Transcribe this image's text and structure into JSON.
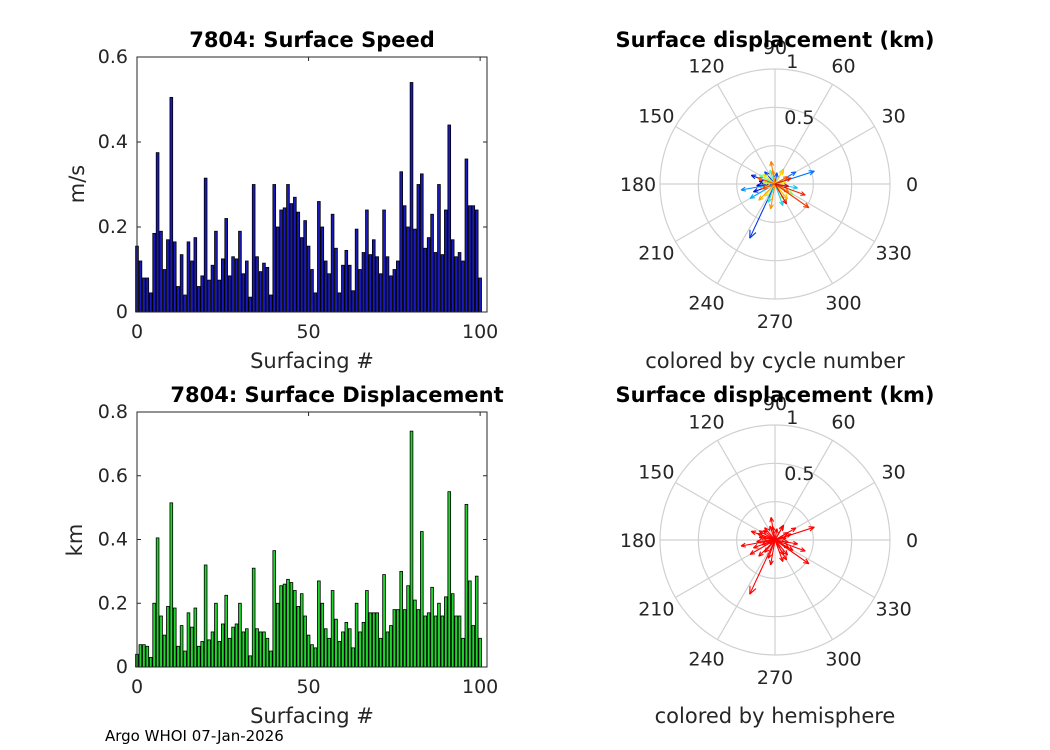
{
  "chart_data": [
    {
      "type": "bar",
      "title": "7804: Surface Speed",
      "xlabel": "Surfacing #",
      "ylabel": "m/s",
      "xlim": [
        0,
        102
      ],
      "ylim": [
        0,
        0.6
      ],
      "xticks": [
        "0",
        "50",
        "100"
      ],
      "yticks": [
        "0",
        "0.2",
        "0.4",
        "0.6"
      ],
      "color": "#1a1ab8",
      "values": [
        0.155,
        0.12,
        0.08,
        0.08,
        0.045,
        0.185,
        0.375,
        0.19,
        0.1,
        0.17,
        0.505,
        0.165,
        0.06,
        0.135,
        0.04,
        0.165,
        0.12,
        0.175,
        0.06,
        0.085,
        0.315,
        0.075,
        0.11,
        0.19,
        0.075,
        0.125,
        0.22,
        0.085,
        0.13,
        0.125,
        0.19,
        0.09,
        0.12,
        0.035,
        0.3,
        0.13,
        0.095,
        0.115,
        0.105,
        0.04,
        0.3,
        0.2,
        0.24,
        0.245,
        0.3,
        0.255,
        0.27,
        0.235,
        0.175,
        0.215,
        0.155,
        0.1,
        0.045,
        0.26,
        0.2,
        0.12,
        0.09,
        0.23,
        0.15,
        0.045,
        0.11,
        0.145,
        0.11,
        0.05,
        0.195,
        0.1,
        0.14,
        0.24,
        0.135,
        0.17,
        0.13,
        0.09,
        0.24,
        0.13,
        0.085,
        0.1,
        0.12,
        0.33,
        0.25,
        0.2,
        0.54,
        0.195,
        0.3,
        0.325,
        0.15,
        0.175,
        0.23,
        0.14,
        0.3,
        0.135,
        0.24,
        0.44,
        0.17,
        0.13,
        0.14,
        0.12,
        0.36,
        0.25,
        0.25,
        0.24,
        0.08
      ],
      "data_labels": []
    },
    {
      "type": "bar",
      "title": "7804: Surface Displacement",
      "xlabel": "Surfacing #",
      "ylabel": "km",
      "xlim": [
        0,
        102
      ],
      "ylim": [
        0,
        0.8
      ],
      "xticks": [
        "0",
        "50",
        "100"
      ],
      "yticks": [
        "0",
        "0.2",
        "0.4",
        "0.6",
        "0.8"
      ],
      "color": "#22d42e",
      "values": [
        0.04,
        0.07,
        0.07,
        0.065,
        0.03,
        0.2,
        0.405,
        0.16,
        0.1,
        0.19,
        0.515,
        0.185,
        0.065,
        0.13,
        0.05,
        0.17,
        0.125,
        0.185,
        0.065,
        0.08,
        0.32,
        0.085,
        0.11,
        0.2,
        0.08,
        0.135,
        0.225,
        0.09,
        0.125,
        0.135,
        0.2,
        0.11,
        0.12,
        0.035,
        0.31,
        0.12,
        0.11,
        0.11,
        0.09,
        0.05,
        0.365,
        0.2,
        0.255,
        0.26,
        0.275,
        0.265,
        0.24,
        0.19,
        0.23,
        0.16,
        0.1,
        0.07,
        0.06,
        0.27,
        0.2,
        0.12,
        0.09,
        0.24,
        0.15,
        0.08,
        0.11,
        0.14,
        0.12,
        0.06,
        0.2,
        0.11,
        0.14,
        0.24,
        0.17,
        0.17,
        0.17,
        0.09,
        0.29,
        0.11,
        0.13,
        0.18,
        0.18,
        0.3,
        0.18,
        0.255,
        0.74,
        0.21,
        0.18,
        0.425,
        0.16,
        0.17,
        0.25,
        0.16,
        0.2,
        0.16,
        0.22,
        0.55,
        0.23,
        0.16,
        0.16,
        0.09,
        0.51,
        0.27,
        0.13,
        0.285,
        0.09
      ],
      "data_labels": []
    },
    {
      "type": "polar-vectors",
      "title": "Surface displacement (km)",
      "caption": "colored by cycle number",
      "radial_max": 1,
      "radial_ticks": [
        "0.5",
        "1"
      ],
      "angle_ticks": [
        "0",
        "30",
        "60",
        "90",
        "120",
        "150",
        "180",
        "210",
        "240",
        "270",
        "300",
        "330"
      ],
      "colormap": [
        "#0000c8",
        "#0060ff",
        "#00c0ff",
        "#60ffa0",
        "#ffe000",
        "#ff6000",
        "#d40000"
      ],
      "vectors": [
        {
          "angle_deg": 185,
          "r": 0.16,
          "cycle": 1
        },
        {
          "angle_deg": 170,
          "r": 0.14,
          "cycle": 2
        },
        {
          "angle_deg": 200,
          "r": 0.2,
          "cycle": 3
        },
        {
          "angle_deg": 160,
          "r": 0.22,
          "cycle": 5
        },
        {
          "angle_deg": 245,
          "r": 0.52,
          "cycle": 10
        },
        {
          "angle_deg": 130,
          "r": 0.14,
          "cycle": 12
        },
        {
          "angle_deg": 80,
          "r": 0.1,
          "cycle": 15
        },
        {
          "angle_deg": 30,
          "r": 0.21,
          "cycle": 18
        },
        {
          "angle_deg": 18,
          "r": 0.36,
          "cycle": 20
        },
        {
          "angle_deg": 190,
          "r": 0.3,
          "cycle": 25
        },
        {
          "angle_deg": 210,
          "r": 0.25,
          "cycle": 30
        },
        {
          "angle_deg": 350,
          "r": 0.2,
          "cycle": 35
        },
        {
          "angle_deg": 290,
          "r": 0.2,
          "cycle": 38
        },
        {
          "angle_deg": 250,
          "r": 0.17,
          "cycle": 42
        },
        {
          "angle_deg": 60,
          "r": 0.15,
          "cycle": 45
        },
        {
          "angle_deg": 110,
          "r": 0.13,
          "cycle": 48
        },
        {
          "angle_deg": 150,
          "r": 0.16,
          "cycle": 50
        },
        {
          "angle_deg": 330,
          "r": 0.18,
          "cycle": 55
        },
        {
          "angle_deg": 300,
          "r": 0.15,
          "cycle": 58
        },
        {
          "angle_deg": 170,
          "r": 0.11,
          "cycle": 60
        },
        {
          "angle_deg": 230,
          "r": 0.14,
          "cycle": 62
        },
        {
          "angle_deg": 10,
          "r": 0.1,
          "cycle": 65
        },
        {
          "angle_deg": 140,
          "r": 0.13,
          "cycle": 66
        },
        {
          "angle_deg": 200,
          "r": 0.08,
          "cycle": 68
        },
        {
          "angle_deg": 60,
          "r": 0.14,
          "cycle": 70
        },
        {
          "angle_deg": 310,
          "r": 0.17,
          "cycle": 72
        },
        {
          "angle_deg": 225,
          "r": 0.2,
          "cycle": 75
        },
        {
          "angle_deg": 100,
          "r": 0.12,
          "cycle": 77
        },
        {
          "angle_deg": 260,
          "r": 0.22,
          "cycle": 78
        },
        {
          "angle_deg": 100,
          "r": 0.2,
          "cycle": 80
        },
        {
          "angle_deg": 330,
          "r": 0.14,
          "cycle": 82
        },
        {
          "angle_deg": 30,
          "r": 0.13,
          "cycle": 84
        },
        {
          "angle_deg": 160,
          "r": 0.16,
          "cycle": 86
        },
        {
          "angle_deg": 200,
          "r": 0.12,
          "cycle": 88
        },
        {
          "angle_deg": 325,
          "r": 0.36,
          "cycle": 91
        },
        {
          "angle_deg": 340,
          "r": 0.28,
          "cycle": 94
        },
        {
          "angle_deg": 20,
          "r": 0.15,
          "cycle": 96
        },
        {
          "angle_deg": 300,
          "r": 0.2,
          "cycle": 98
        },
        {
          "angle_deg": 350,
          "r": 0.12,
          "cycle": 100
        }
      ]
    },
    {
      "type": "polar-vectors",
      "title": "Surface displacement (km)",
      "caption": "colored by hemisphere",
      "radial_max": 1,
      "radial_ticks": [
        "0.5",
        "1"
      ],
      "angle_ticks": [
        "0",
        "30",
        "60",
        "90",
        "120",
        "150",
        "180",
        "210",
        "240",
        "270",
        "300",
        "330"
      ],
      "color": "#ff0000",
      "vectors": [
        {
          "angle_deg": 185,
          "r": 0.16
        },
        {
          "angle_deg": 170,
          "r": 0.14
        },
        {
          "angle_deg": 200,
          "r": 0.2
        },
        {
          "angle_deg": 160,
          "r": 0.22
        },
        {
          "angle_deg": 245,
          "r": 0.52
        },
        {
          "angle_deg": 130,
          "r": 0.14
        },
        {
          "angle_deg": 80,
          "r": 0.1
        },
        {
          "angle_deg": 30,
          "r": 0.21
        },
        {
          "angle_deg": 18,
          "r": 0.36
        },
        {
          "angle_deg": 190,
          "r": 0.3
        },
        {
          "angle_deg": 210,
          "r": 0.25
        },
        {
          "angle_deg": 350,
          "r": 0.2
        },
        {
          "angle_deg": 290,
          "r": 0.2
        },
        {
          "angle_deg": 250,
          "r": 0.17
        },
        {
          "angle_deg": 60,
          "r": 0.15
        },
        {
          "angle_deg": 110,
          "r": 0.13
        },
        {
          "angle_deg": 150,
          "r": 0.16
        },
        {
          "angle_deg": 330,
          "r": 0.18
        },
        {
          "angle_deg": 300,
          "r": 0.15
        },
        {
          "angle_deg": 170,
          "r": 0.11
        },
        {
          "angle_deg": 230,
          "r": 0.14
        },
        {
          "angle_deg": 10,
          "r": 0.1
        },
        {
          "angle_deg": 140,
          "r": 0.13
        },
        {
          "angle_deg": 200,
          "r": 0.08
        },
        {
          "angle_deg": 60,
          "r": 0.14
        },
        {
          "angle_deg": 310,
          "r": 0.17
        },
        {
          "angle_deg": 225,
          "r": 0.2
        },
        {
          "angle_deg": 100,
          "r": 0.12
        },
        {
          "angle_deg": 260,
          "r": 0.22
        },
        {
          "angle_deg": 100,
          "r": 0.2
        },
        {
          "angle_deg": 330,
          "r": 0.14
        },
        {
          "angle_deg": 30,
          "r": 0.13
        },
        {
          "angle_deg": 160,
          "r": 0.16
        },
        {
          "angle_deg": 200,
          "r": 0.12
        },
        {
          "angle_deg": 325,
          "r": 0.36
        },
        {
          "angle_deg": 340,
          "r": 0.28
        },
        {
          "angle_deg": 20,
          "r": 0.15
        },
        {
          "angle_deg": 300,
          "r": 0.2
        },
        {
          "angle_deg": 350,
          "r": 0.12
        }
      ]
    }
  ],
  "footer": {
    "text": "Argo WHOI 07-Jan-2026"
  }
}
